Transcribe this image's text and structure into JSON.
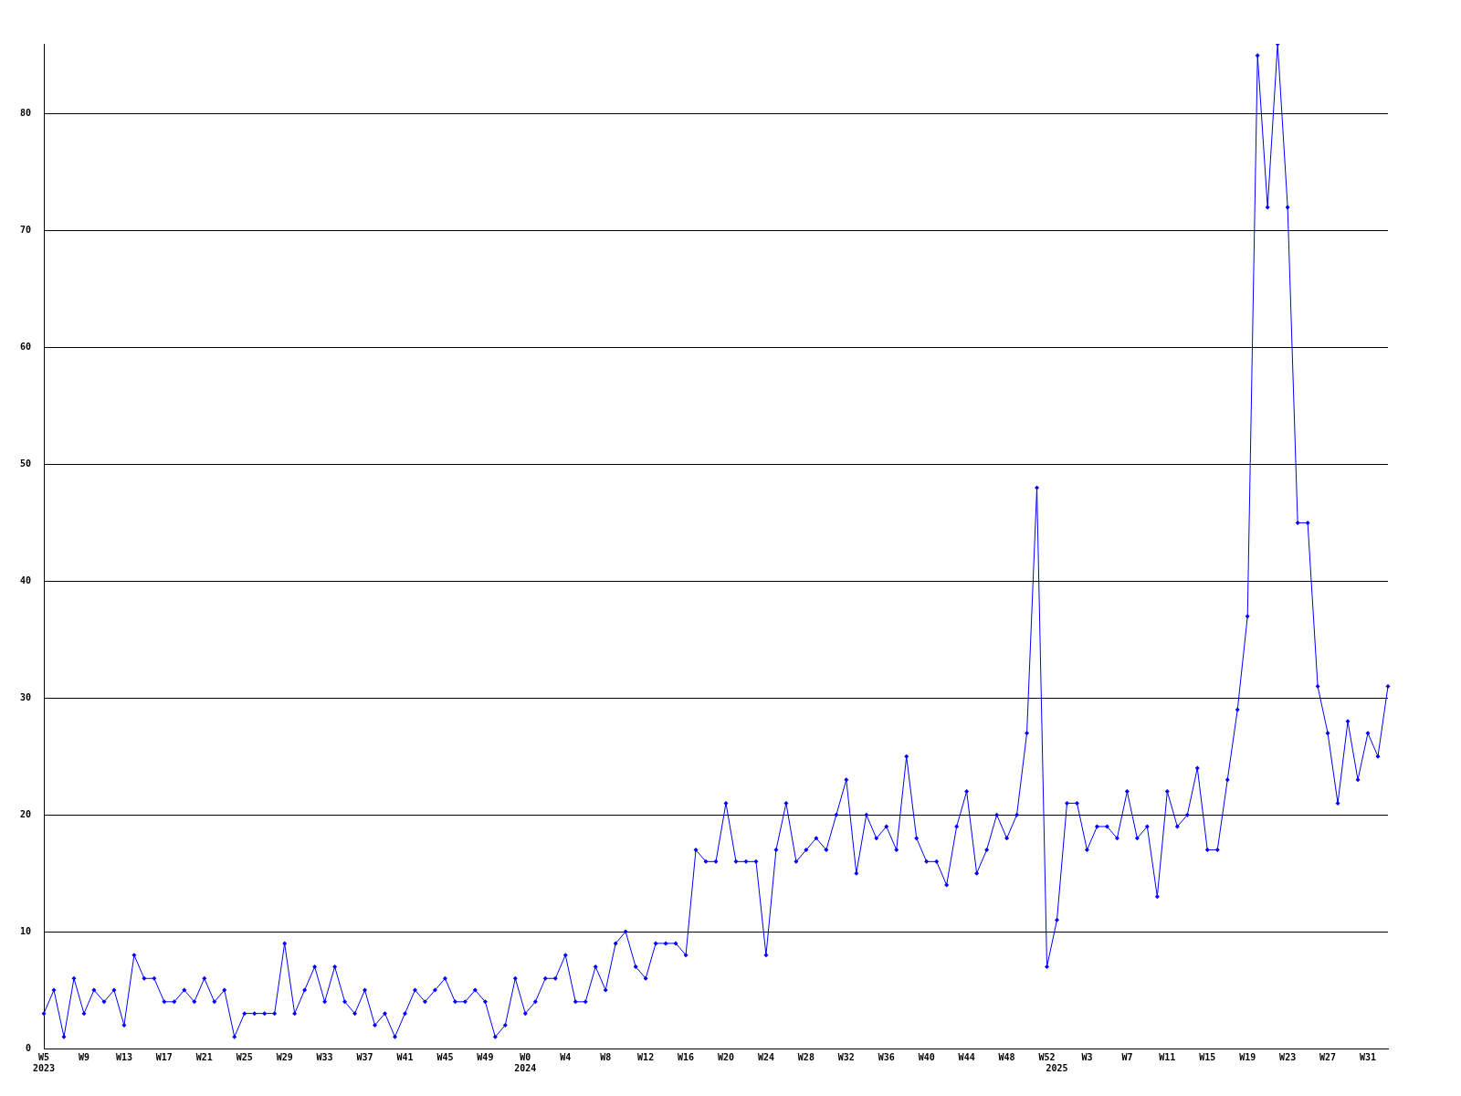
{
  "chart_data": {
    "type": "line",
    "categories": [
      "W5\n2023",
      null,
      null,
      null,
      "W9",
      null,
      null,
      null,
      "W13",
      null,
      null,
      null,
      "W17",
      null,
      null,
      null,
      "W21",
      null,
      null,
      null,
      "W25",
      null,
      null,
      null,
      "W29",
      null,
      null,
      null,
      "W33",
      null,
      null,
      null,
      "W37",
      null,
      null,
      null,
      "W41",
      null,
      null,
      null,
      "W45",
      null,
      null,
      null,
      "W49",
      null,
      null,
      null,
      "W0\n2024",
      null,
      null,
      null,
      "W4",
      null,
      null,
      null,
      "W8",
      null,
      null,
      null,
      "W12",
      null,
      null,
      null,
      "W16",
      null,
      null,
      null,
      "W20",
      null,
      null,
      null,
      "W24",
      null,
      null,
      null,
      "W28",
      null,
      null,
      null,
      "W32",
      null,
      null,
      null,
      "W36",
      null,
      null,
      null,
      "W40",
      null,
      null,
      null,
      "W44",
      null,
      null,
      null,
      "W48",
      null,
      null,
      null,
      "W52",
      "\n2025",
      null,
      null,
      "W3",
      null,
      null,
      null,
      "W7",
      null,
      null,
      null,
      "W11",
      null,
      null,
      null,
      "W15",
      null,
      null,
      null,
      "W19",
      null,
      null,
      null,
      "W23",
      null,
      null,
      null,
      "W27",
      null,
      null,
      null,
      "W31",
      null,
      null
    ],
    "series": [
      {
        "color": "#0000ff",
        "values": [
          3,
          5,
          1,
          6,
          3,
          5,
          4,
          5,
          2,
          8,
          6,
          6,
          4,
          4,
          5,
          4,
          6,
          4,
          5,
          1,
          3,
          3,
          3,
          3,
          9,
          3,
          5,
          7,
          4,
          7,
          4,
          3,
          5,
          2,
          3,
          1,
          3,
          5,
          4,
          5,
          6,
          4,
          4,
          5,
          4,
          1,
          2,
          6,
          3,
          4,
          6,
          6,
          8,
          4,
          4,
          7,
          5,
          9,
          10,
          7,
          6,
          9,
          9,
          9,
          8,
          17,
          16,
          16,
          21,
          16,
          16,
          16,
          8,
          17,
          21,
          16,
          17,
          18,
          17,
          20,
          23,
          15,
          20,
          18,
          19,
          17,
          25,
          18,
          16,
          16,
          14,
          19,
          22,
          15,
          17,
          20,
          18,
          20,
          27,
          48,
          7,
          11,
          21,
          21,
          17,
          19,
          19,
          18,
          22,
          18,
          19,
          13,
          22,
          19,
          20,
          24,
          17,
          17,
          23,
          29,
          37,
          85,
          72,
          86,
          72,
          45,
          45,
          31,
          27,
          21,
          28,
          23,
          27,
          25,
          31
        ]
      }
    ],
    "ylim": [
      0,
      86
    ],
    "yticks": [
      0,
      10,
      20,
      30,
      40,
      50,
      60,
      70,
      80
    ],
    "grid": "y",
    "legend": false,
    "marker": "diamond",
    "line_style": "solid"
  }
}
